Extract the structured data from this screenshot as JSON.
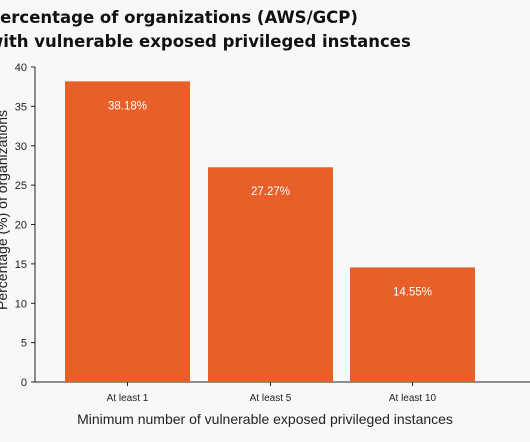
{
  "chart_data": {
    "type": "bar",
    "title_lines": [
      "Percentage of organizations (AWS/GCP)",
      "with vulnerable exposed privileged instances"
    ],
    "categories": [
      "At least 1",
      "At least 5",
      "At least 10"
    ],
    "values": [
      38.18,
      27.27,
      14.55
    ],
    "value_labels": [
      "38.18%",
      "27.27%",
      "14.55%"
    ],
    "xlabel": "Minimum number of vulnerable exposed privileged instances",
    "ylabel": "Percentage (%) of organizations",
    "ylim": [
      0,
      40
    ],
    "yticks": [
      0,
      5,
      10,
      15,
      20,
      25,
      30,
      35,
      40
    ],
    "grid": false,
    "bar_color": "#e95f2a",
    "label_color": "#ffffff"
  }
}
